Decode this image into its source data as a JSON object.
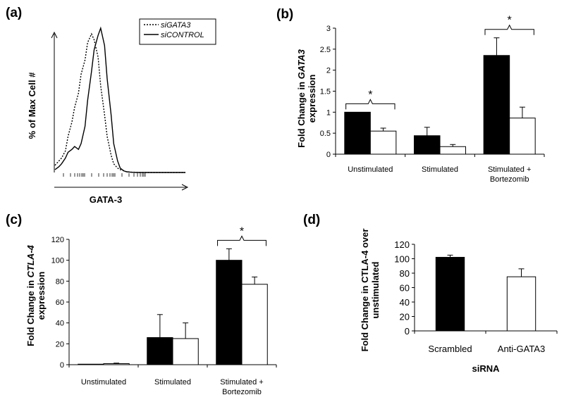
{
  "panels": {
    "a": {
      "label": "(a)"
    },
    "b": {
      "label": "(b)"
    },
    "c": {
      "label": "(c)"
    },
    "d": {
      "label": "(d)"
    }
  },
  "chart_data": [
    {
      "panel": "(a)",
      "type": "line",
      "xlabel": "GATA-3",
      "ylabel": "% of Max Cell #",
      "legend": [
        "siGATA3",
        "siCONTROL"
      ],
      "legend_position": "top-right",
      "x": [
        0,
        3,
        5,
        8,
        10,
        13,
        15,
        18,
        20,
        23,
        25,
        28,
        30,
        33,
        35,
        38,
        40,
        43,
        45,
        48,
        50,
        53,
        55,
        58,
        60,
        63,
        65,
        70,
        75,
        80,
        90,
        100
      ],
      "series": [
        {
          "name": "siGATA3",
          "style": "dotted",
          "values": [
            5,
            8,
            10,
            15,
            25,
            35,
            45,
            55,
            68,
            78,
            90,
            96,
            92,
            80,
            60,
            40,
            25,
            12,
            6,
            3,
            2,
            1,
            0.5,
            0.3,
            0.2,
            0.1,
            0,
            0,
            0,
            0,
            0,
            0
          ]
        },
        {
          "name": "siCONTROL",
          "style": "solid",
          "values": [
            2,
            4,
            6,
            10,
            14,
            16,
            18,
            16,
            20,
            32,
            50,
            70,
            85,
            95,
            100,
            88,
            65,
            40,
            20,
            8,
            3,
            1,
            0.5,
            0.2,
            0.1,
            0,
            0,
            0,
            0,
            0,
            0,
            0
          ]
        }
      ]
    },
    {
      "panel": "(b)",
      "type": "bar",
      "ylabel_parts": [
        "Fold Change in ",
        "GATA3",
        " expression"
      ],
      "ylim": [
        0,
        3
      ],
      "yticks": [
        "0",
        "0.5",
        "1",
        "1.5",
        "2",
        "2.5",
        "3"
      ],
      "categories": [
        "Unstimulated",
        "Stimulated",
        "Stimulated + Bortezomib"
      ],
      "category_lines": [
        [
          "Unstimulated"
        ],
        [
          "Stimulated"
        ],
        [
          "Stimulated +",
          "Bortezomib"
        ]
      ],
      "series": [
        {
          "fill": "#000000",
          "values": [
            1.0,
            0.44,
            2.35
          ],
          "errors": [
            0,
            0.2,
            0.42
          ]
        },
        {
          "fill": "#ffffff",
          "values": [
            0.55,
            0.18,
            0.86
          ],
          "errors": [
            0.07,
            0.05,
            0.26
          ]
        }
      ],
      "significance": [
        {
          "category": 0,
          "label": "*"
        },
        {
          "category": 2,
          "label": "*"
        }
      ]
    },
    {
      "panel": "(c)",
      "type": "bar",
      "ylabel_parts": [
        "Fold Change in ",
        "CTLA-4",
        " expression"
      ],
      "ylim": [
        0,
        120
      ],
      "yticks": [
        "0",
        "20",
        "40",
        "60",
        "80",
        "100",
        "120"
      ],
      "categories": [
        "Unstimulated",
        "Stimulated",
        "Stimulated + Bortezomib"
      ],
      "category_lines": [
        [
          "Unstimulated"
        ],
        [
          "Stimulated"
        ],
        [
          "Stimulated +",
          "Bortezomib"
        ]
      ],
      "series": [
        {
          "fill": "#000000",
          "values": [
            0.5,
            26,
            100
          ],
          "errors": [
            0,
            22,
            11
          ]
        },
        {
          "fill": "#ffffff",
          "values": [
            1,
            25,
            77
          ],
          "errors": [
            0.5,
            15,
            7
          ]
        }
      ],
      "significance": [
        {
          "category": 2,
          "label": "*"
        }
      ]
    },
    {
      "panel": "(d)",
      "type": "bar",
      "ylabel_lines": [
        "Fold Change in CTLA-4 over",
        "unstimulated"
      ],
      "xlabel": "siRNA",
      "ylim": [
        0,
        120
      ],
      "yticks": [
        "0",
        "20",
        "40",
        "60",
        "80",
        "100",
        "120"
      ],
      "categories": [
        "Scrambled",
        "Anti-GATA3"
      ],
      "values": [
        102,
        75
      ],
      "errors": [
        3,
        11
      ],
      "fills": [
        "#000000",
        "#ffffff"
      ]
    }
  ]
}
